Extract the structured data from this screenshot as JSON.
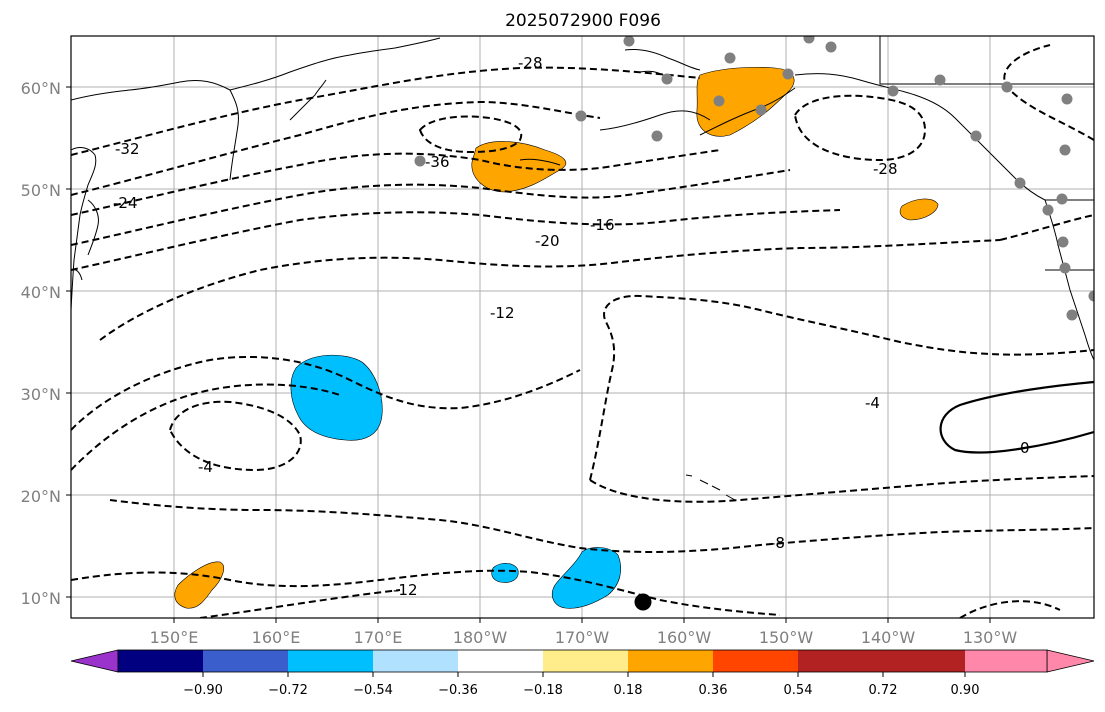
{
  "title": "2025072900 F096",
  "lat_labels": [
    "10°N",
    "20°N",
    "30°N",
    "40°N",
    "50°N",
    "60°N"
  ],
  "lon_labels": [
    "150°E",
    "160°E",
    "170°E",
    "180°W",
    "170°W",
    "160°W",
    "150°W",
    "140°W",
    "130°W"
  ],
  "contour_labels": [
    "-32",
    "-24",
    "-36",
    "-28",
    "-28",
    "-20",
    "-16",
    "-12",
    "-4",
    "-4",
    "0",
    "-8",
    "-12"
  ],
  "colorbar": {
    "ticks": [
      "−0.90",
      "−0.72",
      "−0.54",
      "−0.36",
      "−0.18",
      "0.18",
      "0.36",
      "0.54",
      "0.72",
      "0.90"
    ],
    "colors": [
      "#9933cc",
      "#000080",
      "#3a5fcd",
      "#00bfff",
      "#b0e2ff",
      "#ffffff",
      "#ffec8b",
      "#ffa500",
      "#ff4500",
      "#b22222",
      "#ff88aa"
    ]
  },
  "colors": {
    "positive_fill": "#ffa500",
    "negative_fill": "#00bfff",
    "station": "#808080",
    "grid": "#b0b0b0"
  }
}
